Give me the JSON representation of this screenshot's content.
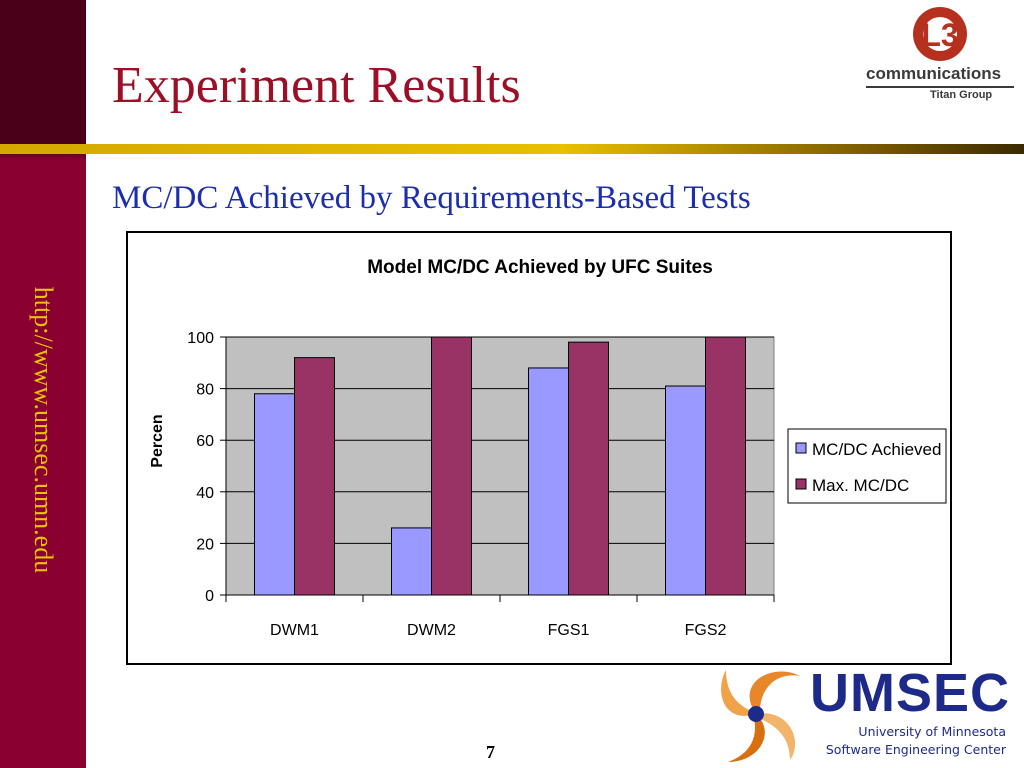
{
  "slide": {
    "title": "Experiment Results",
    "subtitle": "MC/DC Achieved by Requirements-Based Tests",
    "page_number": "7",
    "side_url": "http://www.umsec.umn.edu"
  },
  "logos": {
    "l3": {
      "mark": "L3",
      "word": "communications",
      "group": "Titan Group"
    },
    "umsec": {
      "word": "UMSEC",
      "line1": "University of Minnesota",
      "line2": "Software Engineering Center"
    }
  },
  "colors": {
    "title": "#9b1026",
    "subtitle": "#1c2db0",
    "sidebar": "#8a0030",
    "series1": "#9999ff",
    "series2": "#993366",
    "plot_bg": "#c0c0c0"
  },
  "chart_data": {
    "type": "bar",
    "title": "Model MC/DC Achieved by UFC Suites",
    "ylabel": "Percen",
    "xlabel": "",
    "categories": [
      "DWM1",
      "DWM2",
      "FGS1",
      "FGS2"
    ],
    "series": [
      {
        "name": "MC/DC Achieved",
        "values": [
          78,
          26,
          88,
          81
        ]
      },
      {
        "name": "Max. MC/DC",
        "values": [
          92,
          100,
          98,
          100
        ]
      }
    ],
    "ylim": [
      0,
      100
    ],
    "yticks": [
      0,
      20,
      40,
      60,
      80,
      100
    ],
    "grid": true,
    "legend": "right"
  }
}
